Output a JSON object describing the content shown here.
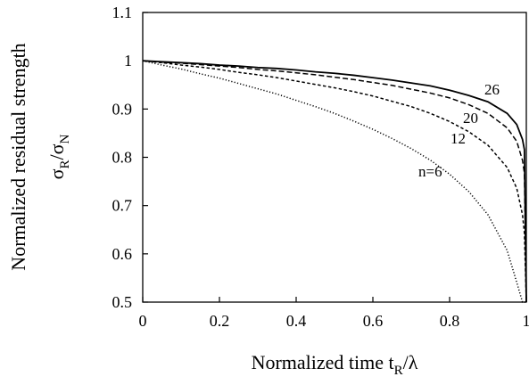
{
  "chart_data": {
    "type": "line",
    "xlabel": "Normalized time t",
    "xlabel_sub": "R",
    "xlabel_tail": "/λ",
    "ylabel": "Normalized residual strength",
    "ylabel2_a": "σ",
    "ylabel2_a_sub": "R",
    "ylabel2_sep": "/σ",
    "ylabel2_b_sub": "N",
    "xlim": [
      0,
      1
    ],
    "ylim": [
      0.5,
      1.1
    ],
    "xticks": [
      "0",
      "0.2",
      "0.4",
      "0.6",
      "0.8",
      "1"
    ],
    "yticks": [
      "0.5",
      "0.6",
      "0.7",
      "0.8",
      "0.9",
      "1",
      "1.1"
    ],
    "x": [
      0,
      0.05,
      0.1,
      0.15,
      0.2,
      0.25,
      0.3,
      0.35,
      0.4,
      0.45,
      0.5,
      0.55,
      0.6,
      0.65,
      0.7,
      0.75,
      0.8,
      0.85,
      0.9,
      0.95,
      0.975,
      0.99,
      0.995,
      1.0
    ],
    "series": [
      {
        "label": "26",
        "style": "solid",
        "values": [
          1.0,
          0.998,
          0.996,
          0.994,
          0.991,
          0.989,
          0.986,
          0.984,
          0.981,
          0.977,
          0.974,
          0.97,
          0.965,
          0.96,
          0.954,
          0.948,
          0.939,
          0.928,
          0.915,
          0.891,
          0.868,
          0.837,
          0.816,
          0.5
        ]
      },
      {
        "label": "20",
        "style": "dashed",
        "values": [
          1.0,
          0.997,
          0.995,
          0.992,
          0.989,
          0.986,
          0.982,
          0.979,
          0.975,
          0.971,
          0.966,
          0.961,
          0.955,
          0.949,
          0.941,
          0.933,
          0.923,
          0.909,
          0.891,
          0.861,
          0.833,
          0.794,
          0.767,
          0.5
        ]
      },
      {
        "label": "12",
        "style": "short-dash",
        "values": [
          1.0,
          0.996,
          0.991,
          0.987,
          0.982,
          0.976,
          0.971,
          0.965,
          0.958,
          0.951,
          0.944,
          0.936,
          0.927,
          0.916,
          0.905,
          0.891,
          0.874,
          0.853,
          0.825,
          0.779,
          0.736,
          0.681,
          0.643,
          0.5
        ]
      },
      {
        "label": "n=6",
        "style": "dotted",
        "values": [
          1.0,
          0.991,
          0.983,
          0.973,
          0.964,
          0.953,
          0.942,
          0.931,
          0.918,
          0.905,
          0.891,
          0.875,
          0.858,
          0.839,
          0.818,
          0.794,
          0.765,
          0.729,
          0.681,
          0.607,
          0.541,
          0.5,
          0.5,
          0.5
        ]
      }
    ],
    "grid": false,
    "legend": "none"
  }
}
